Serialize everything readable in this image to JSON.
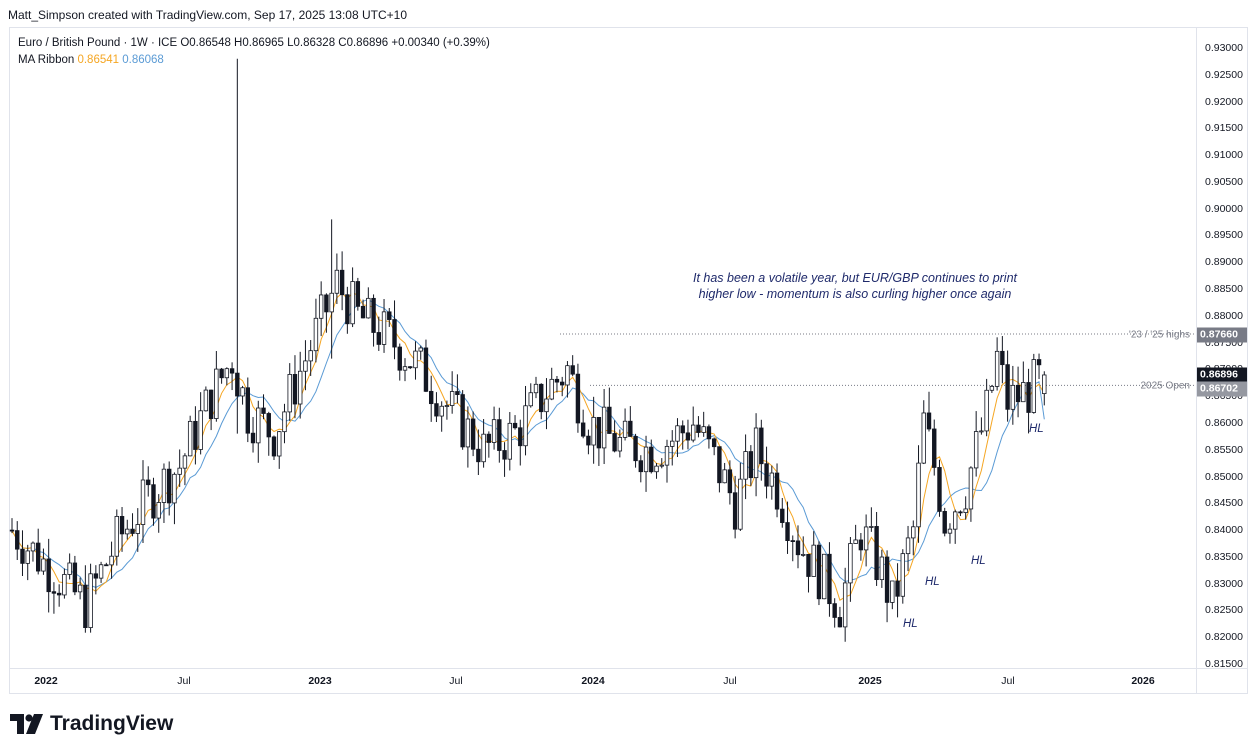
{
  "credit": "Matt_Simpson created with TradingView.com, Sep 17, 2025 13:08 UTC+10",
  "legend": {
    "symbol": "Euro / British Pound · 1W · ICE",
    "ohlc": "O0.86548 H0.86965 L0.86328 C0.86896 +0.00340 (+0.39%)",
    "ma_label": "MA Ribbon",
    "ma_fast": "0.86541",
    "ma_slow": "0.86068"
  },
  "annotation": {
    "line1": "It has been a volatile year, but EUR/GBP continues to print",
    "line2": "higher low - momentum is also curling higher once again"
  },
  "levels": {
    "highs_label": "'23 / '25 highs",
    "highs_value": "0.87660",
    "open_label": "2025 Open",
    "open_value": "0.86702",
    "current_value": "0.86896"
  },
  "hl_labels": [
    "HL",
    "HL",
    "HL",
    "HL"
  ],
  "brand": "TradingView",
  "colors": {
    "up": "#131722",
    "down": "#131722",
    "ma_fast": "#f5a623",
    "ma_slow": "#5b9bd5",
    "annotation": "#1f2a6b"
  },
  "chart_data": {
    "type": "candlestick",
    "title": "Euro / British Pound · 1W · ICE",
    "y_ticks": [
      "0.93000",
      "0.92500",
      "0.92000",
      "0.91500",
      "0.91000",
      "0.90500",
      "0.90000",
      "0.89500",
      "0.89000",
      "0.88500",
      "0.88000",
      "0.87500",
      "0.87000",
      "0.86500",
      "0.86000",
      "0.85500",
      "0.85000",
      "0.84500",
      "0.84000",
      "0.83500",
      "0.83000",
      "0.82500",
      "0.82000",
      "0.81500"
    ],
    "x_ticks": [
      "2022",
      "Jul",
      "2023",
      "Jul",
      "2024",
      "Jul",
      "2025",
      "Jul",
      "2026"
    ],
    "ylim": [
      0.8125,
      0.9325
    ],
    "weeks_total": 218,
    "keypoints": [
      [
        0,
        0.84
      ],
      [
        8,
        0.832
      ],
      [
        14,
        0.826
      ],
      [
        20,
        0.838
      ],
      [
        26,
        0.846
      ],
      [
        32,
        0.852
      ],
      [
        38,
        0.865
      ],
      [
        42,
        0.872
      ],
      [
        45,
        0.862
      ],
      [
        50,
        0.858
      ],
      [
        56,
        0.872
      ],
      [
        62,
        0.886
      ],
      [
        66,
        0.88
      ],
      [
        72,
        0.876
      ],
      [
        78,
        0.87
      ],
      [
        84,
        0.862
      ],
      [
        90,
        0.855
      ],
      [
        96,
        0.858
      ],
      [
        102,
        0.866
      ],
      [
        106,
        0.87
      ],
      [
        110,
        0.86
      ],
      [
        116,
        0.856
      ],
      [
        122,
        0.855
      ],
      [
        126,
        0.857
      ],
      [
        130,
        0.86
      ],
      [
        134,
        0.853
      ],
      [
        138,
        0.845
      ],
      [
        142,
        0.855
      ],
      [
        146,
        0.848
      ],
      [
        150,
        0.838
      ],
      [
        154,
        0.832
      ],
      [
        158,
        0.826
      ],
      [
        162,
        0.84
      ],
      [
        166,
        0.832
      ],
      [
        168,
        0.826
      ],
      [
        172,
        0.84
      ],
      [
        174,
        0.86
      ],
      [
        176,
        0.852
      ],
      [
        178,
        0.842
      ],
      [
        182,
        0.848
      ],
      [
        186,
        0.862
      ],
      [
        188,
        0.872
      ],
      [
        190,
        0.864
      ],
      [
        194,
        0.866
      ],
      [
        197,
        0.869
      ]
    ],
    "ma_fast_last": 0.86541,
    "ma_slow_last": 0.86068,
    "spikes": [
      {
        "week": 43,
        "high": 0.928,
        "low": 0.858
      },
      {
        "week": 61,
        "high": 0.898,
        "low": 0.872
      }
    ],
    "last_candle": {
      "open": 0.86548,
      "high": 0.86965,
      "low": 0.86328,
      "close": 0.86896
    }
  }
}
